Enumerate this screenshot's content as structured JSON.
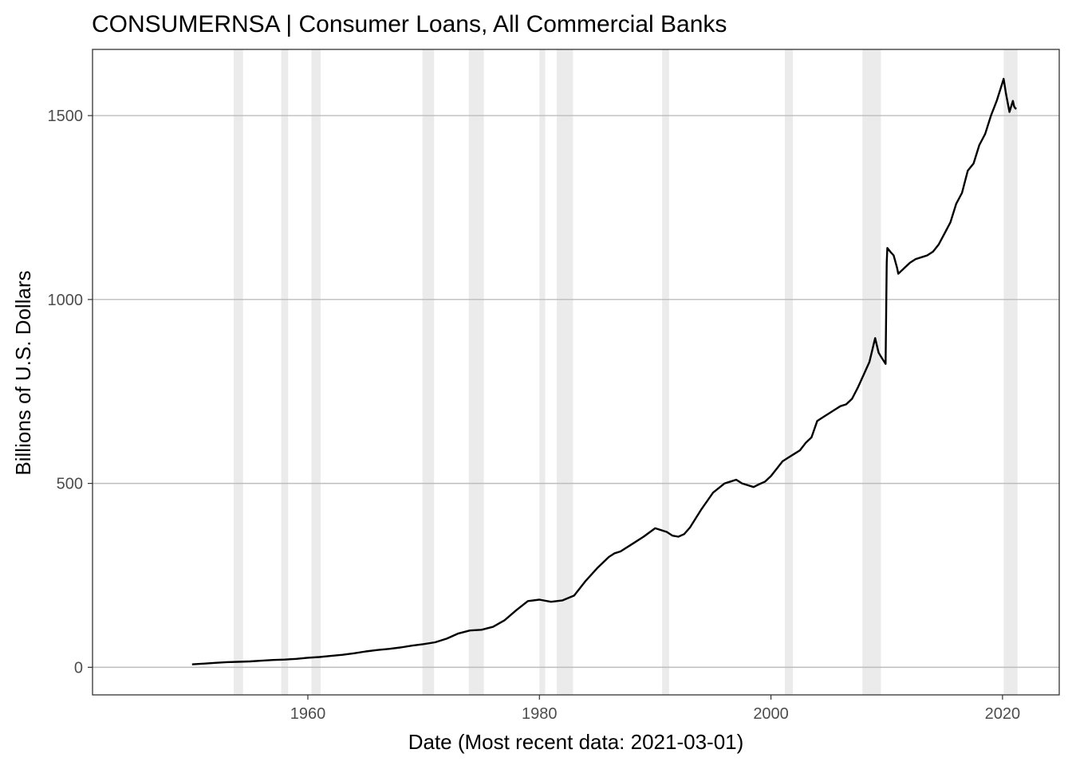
{
  "chart_data": {
    "type": "line",
    "title": "CONSUMERNSA | Consumer Loans, All Commercial Banks",
    "xlabel": "Date (Most recent data: 2021-03-01)",
    "ylabel": "Billions of U.S. Dollars",
    "xlim": [
      1941.4,
      2024.9
    ],
    "ylim": [
      -75,
      1680
    ],
    "x_ticks": [
      1960,
      1980,
      2000,
      2020
    ],
    "y_ticks": [
      0,
      500,
      1000,
      1500
    ],
    "x_tick_labels": [
      "1960",
      "1980",
      "2000",
      "2020"
    ],
    "y_tick_labels": [
      "0",
      "500",
      "1000",
      "1500"
    ],
    "grid": true,
    "grid_axis": "y",
    "recession_color": "#ebebeb",
    "line_color": "#000000",
    "recessions": [
      [
        1953.6,
        1954.4
      ],
      [
        1957.7,
        1958.3
      ],
      [
        1960.3,
        1961.1
      ],
      [
        1969.9,
        1970.9
      ],
      [
        1973.9,
        1975.2
      ],
      [
        1980.0,
        1980.5
      ],
      [
        1981.5,
        1982.9
      ],
      [
        1990.6,
        1991.2
      ],
      [
        2001.2,
        2001.9
      ],
      [
        2007.9,
        2009.5
      ],
      [
        2020.1,
        2021.3
      ]
    ],
    "series": [
      {
        "x": [
          1950.0,
          1951.0,
          1952.0,
          1953.0,
          1954.0,
          1955.0,
          1956.0,
          1957.0,
          1958.0,
          1959.0,
          1960.0,
          1961.0,
          1962.0,
          1963.0,
          1964.0,
          1965.0,
          1966.0,
          1967.0,
          1968.0,
          1969.0,
          1970.0,
          1971.0,
          1972.0,
          1973.0,
          1974.0,
          1975.0,
          1976.0,
          1977.0,
          1978.0,
          1979.0,
          1980.0,
          1981.0,
          1982.0,
          1983.0,
          1984.0,
          1985.0,
          1986.0,
          1986.5,
          1987.0,
          1988.0,
          1989.0,
          1990.0,
          1991.0,
          1991.5,
          1992.0,
          1992.5,
          1993.0,
          1994.0,
          1995.0,
          1996.0,
          1996.5,
          1997.0,
          1997.5,
          1998.0,
          1998.5,
          1999.0,
          1999.5,
          2000.0,
          2000.5,
          2001.0,
          2001.5,
          2002.0,
          2002.5,
          2003.0,
          2003.5,
          2004.0,
          2004.5,
          2005.0,
          2005.5,
          2006.0,
          2006.5,
          2007.0,
          2007.5,
          2008.0,
          2008.5,
          2009.0,
          2009.3,
          2009.6,
          2009.9,
          2010.0,
          2010.05,
          2010.3,
          2010.6,
          2010.9,
          2011.0,
          2011.5,
          2012.0,
          2012.5,
          2013.0,
          2013.5,
          2014.0,
          2014.5,
          2015.0,
          2015.5,
          2016.0,
          2016.5,
          2017.0,
          2017.5,
          2018.0,
          2018.5,
          2019.0,
          2019.5,
          2020.0,
          2020.1,
          2020.3,
          2020.6,
          2020.9,
          2021.0,
          2021.1,
          2021.2
        ],
        "y": [
          8,
          10,
          12,
          14,
          15,
          16,
          18,
          20,
          21,
          23,
          26,
          28,
          31,
          34,
          38,
          43,
          47,
          50,
          54,
          59,
          63,
          68,
          78,
          92,
          100,
          102,
          110,
          128,
          155,
          180,
          184,
          178,
          182,
          195,
          235,
          270,
          300,
          310,
          315,
          335,
          355,
          378,
          368,
          358,
          355,
          362,
          380,
          430,
          475,
          500,
          505,
          510,
          500,
          495,
          490,
          498,
          505,
          520,
          540,
          560,
          570,
          580,
          590,
          610,
          625,
          670,
          680,
          690,
          700,
          710,
          715,
          730,
          760,
          795,
          830,
          895,
          855,
          840,
          825,
          1100,
          1140,
          1130,
          1120,
          1085,
          1070,
          1085,
          1100,
          1110,
          1115,
          1120,
          1130,
          1150,
          1180,
          1210,
          1260,
          1290,
          1350,
          1370,
          1420,
          1450,
          1500,
          1540,
          1590,
          1600,
          1560,
          1510,
          1540,
          1525,
          1520,
          1518
        ]
      }
    ]
  }
}
